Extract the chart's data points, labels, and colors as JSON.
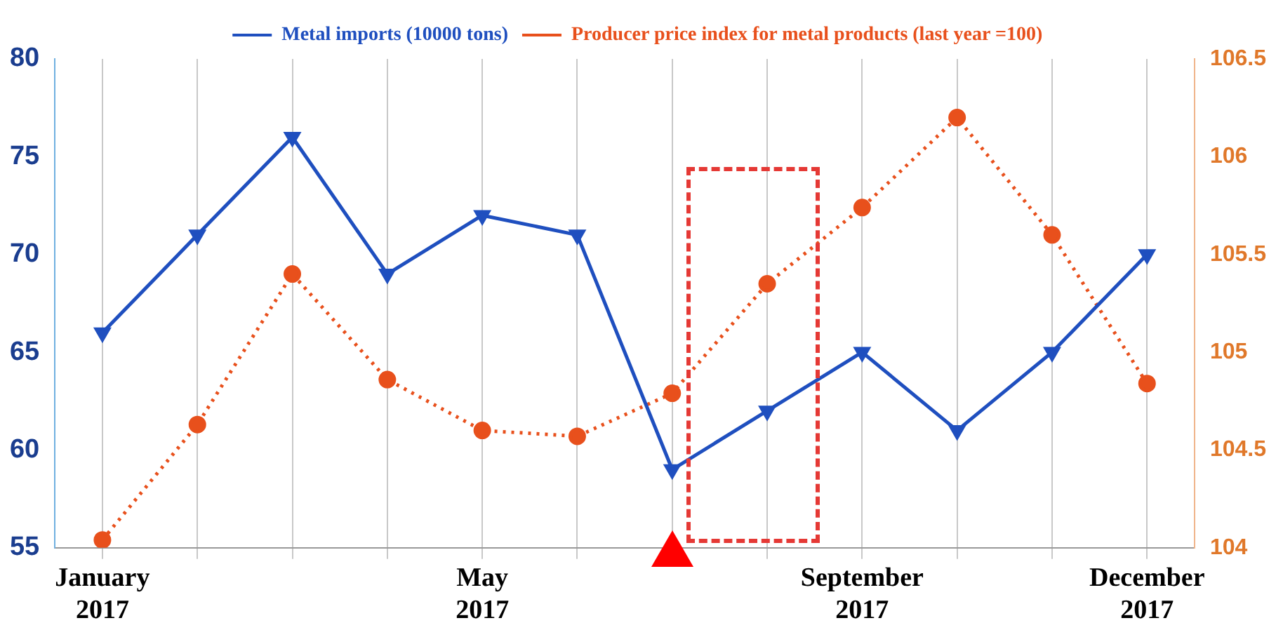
{
  "chart_data": {
    "type": "line",
    "categories": [
      "January 2017",
      null,
      null,
      null,
      "May 2017",
      null,
      null,
      null,
      "September 2017",
      null,
      null,
      "December 2017"
    ],
    "series": [
      {
        "name": "Metal imports (10000 tons)",
        "color": "#1f4fbf",
        "marker": "triangle",
        "line_style": "solid",
        "values": [
          66,
          71,
          76,
          69,
          72,
          71,
          59,
          62,
          65,
          61,
          65,
          70
        ]
      },
      {
        "name": "Producer price index for metal products (last year =100)",
        "color": "#e8501c",
        "marker": "circle",
        "line_style": "dotted",
        "axis": "y2",
        "values": [
          104.04,
          104.63,
          105.4,
          104.86,
          104.6,
          104.57,
          104.79,
          105.35,
          105.74,
          106.2,
          105.6,
          104.84
        ]
      }
    ],
    "ylim": [
      55,
      80
    ],
    "yticks": [
      55,
      60,
      65,
      70,
      75,
      80
    ],
    "y2lim": [
      104,
      106.5
    ],
    "y2ticks": [
      104,
      104.5,
      105,
      105.5,
      106,
      106.5
    ],
    "grid": "x",
    "legend": "top"
  }
}
